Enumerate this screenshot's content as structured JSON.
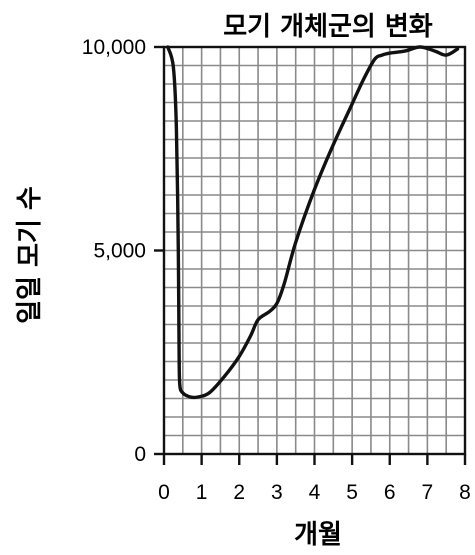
{
  "chart_data": {
    "type": "line",
    "title": "모기 개체군의 변화",
    "xlabel": "개월",
    "ylabel": "일일 모기 수",
    "xlim": [
      0,
      8
    ],
    "ylim": [
      0,
      10000
    ],
    "x_ticks": [
      0,
      1,
      2,
      3,
      4,
      5,
      6,
      7,
      8
    ],
    "x_tick_labels": [
      "0",
      "1",
      "2",
      "3",
      "4",
      "5",
      "6",
      "7",
      "8"
    ],
    "y_ticks": [
      0,
      5000,
      10000
    ],
    "y_tick_labels": [
      "0",
      "5,000",
      "10,000"
    ],
    "grid": true,
    "series": [
      {
        "x": [
          0.1,
          0.25,
          0.33,
          0.38,
          0.4,
          0.42,
          0.5,
          0.7,
          0.9,
          1.2,
          1.6,
          2.0,
          2.3,
          2.5,
          2.8,
          3.0,
          3.2,
          3.5,
          4.0,
          4.5,
          5.0,
          5.3,
          5.6,
          5.8,
          6.0,
          6.4,
          6.8,
          7.2,
          7.5,
          7.8
        ],
        "y": [
          10000,
          9500,
          8000,
          5000,
          2500,
          1700,
          1500,
          1400,
          1400,
          1500,
          1900,
          2400,
          2900,
          3300,
          3500,
          3700,
          4200,
          5200,
          6500,
          7600,
          8600,
          9200,
          9700,
          9800,
          9850,
          9900,
          10000,
          9900,
          9800,
          9950
        ]
      }
    ],
    "colors": {
      "line": "#111111",
      "grid": "#8a8a8a",
      "axis": "#111111"
    }
  }
}
